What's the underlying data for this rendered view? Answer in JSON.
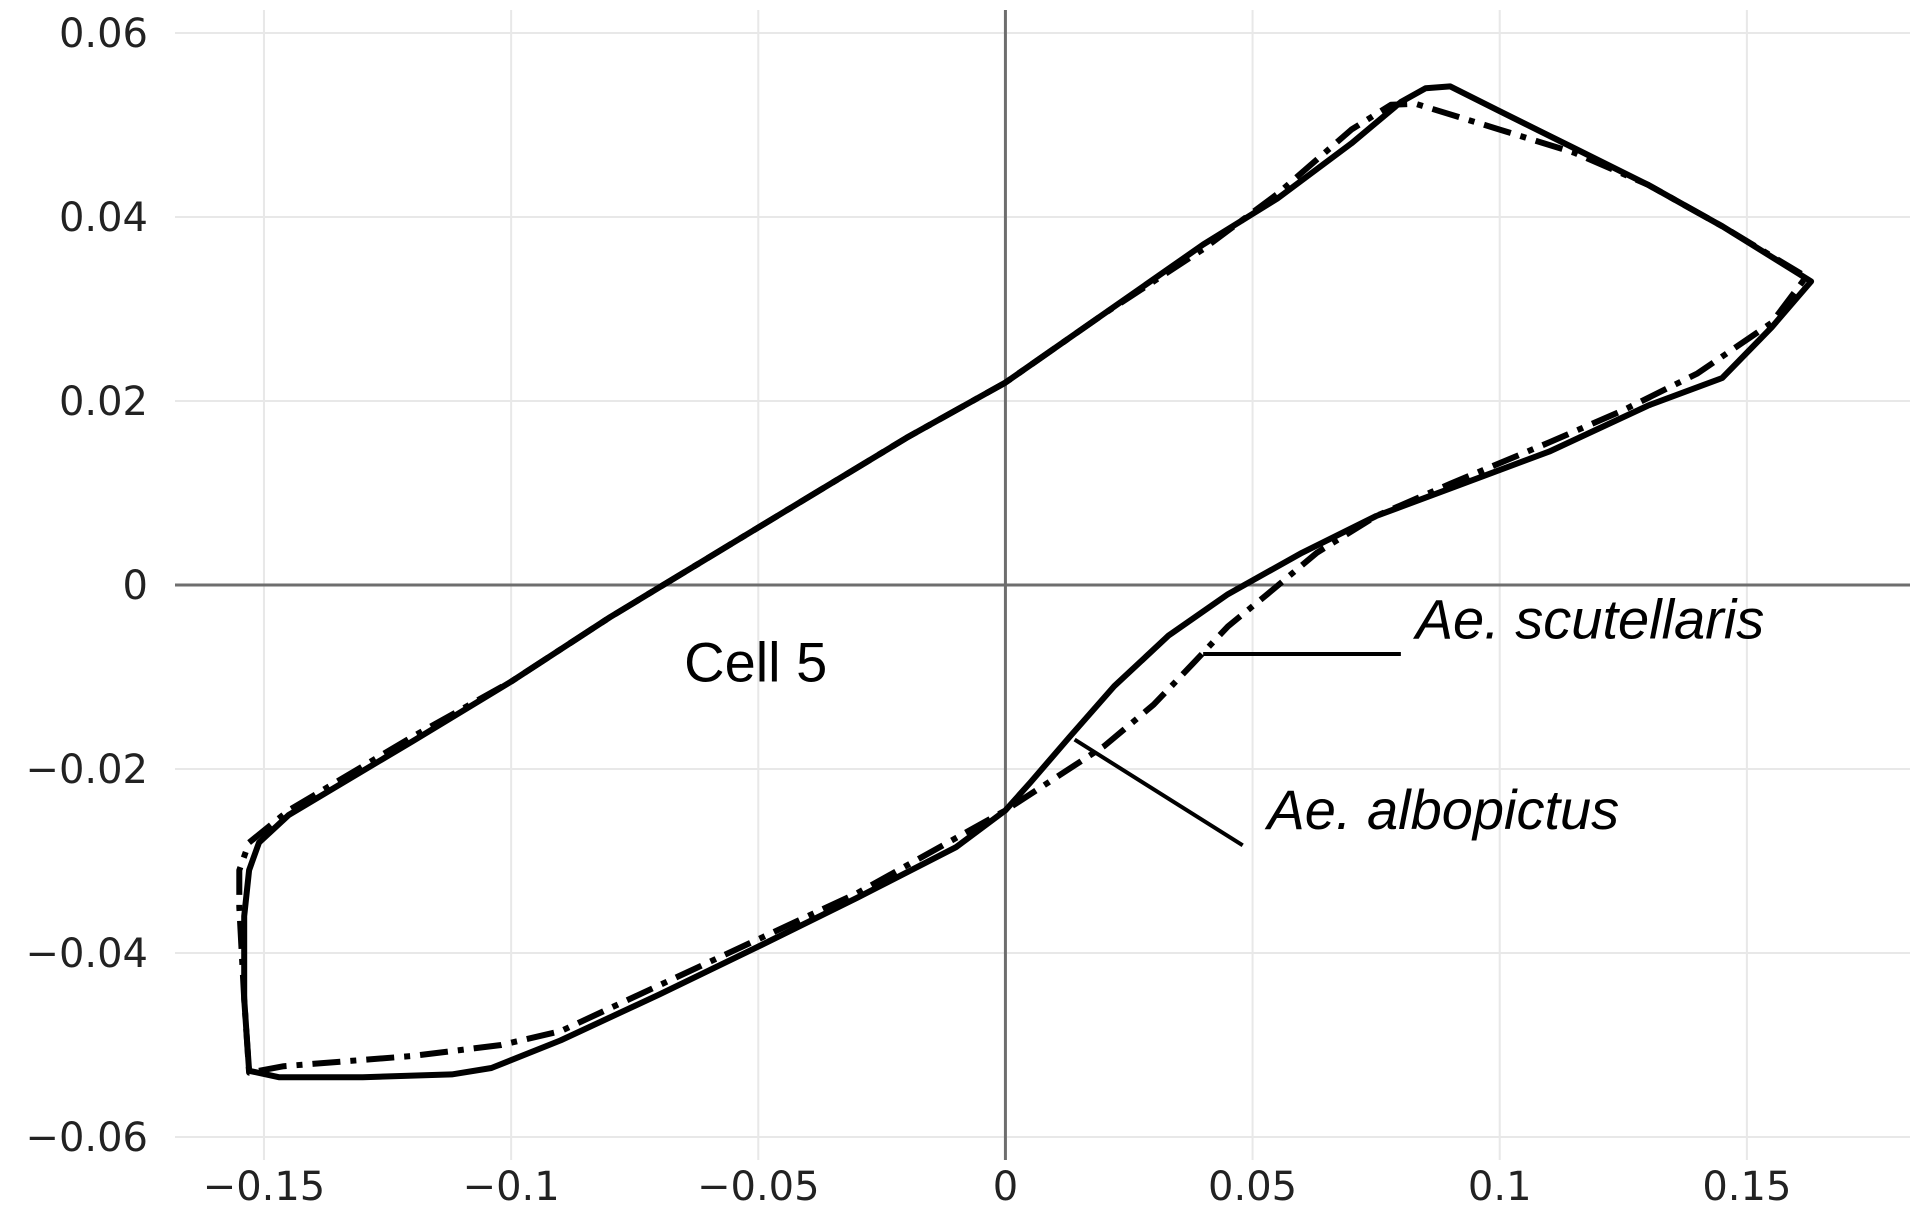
{
  "chart_data": {
    "type": "line",
    "title": "",
    "xlabel": "",
    "ylabel": "",
    "xlim": [
      -0.168,
      0.183
    ],
    "ylim": [
      -0.0625,
      0.0625
    ],
    "grid": true,
    "x_ticks": [
      {
        "value": -0.15,
        "label": "−0.15"
      },
      {
        "value": -0.1,
        "label": "−0.1"
      },
      {
        "value": -0.05,
        "label": "−0.05"
      },
      {
        "value": 0,
        "label": "0"
      },
      {
        "value": 0.05,
        "label": "0.05"
      },
      {
        "value": 0.1,
        "label": "0.1"
      },
      {
        "value": 0.15,
        "label": "0.15"
      }
    ],
    "y_ticks": [
      {
        "value": 0.06,
        "label": "0.06"
      },
      {
        "value": 0.04,
        "label": "0.04"
      },
      {
        "value": 0.02,
        "label": "0.02"
      },
      {
        "value": 0,
        "label": "0"
      },
      {
        "value": -0.02,
        "label": "−0.02"
      },
      {
        "value": -0.04,
        "label": "−0.04"
      },
      {
        "value": -0.06,
        "label": "−0.06"
      }
    ],
    "annotations": [
      {
        "text": "Cell 5",
        "x": -0.065,
        "y": -0.0105,
        "italic": false
      },
      {
        "text": "Ae. scutellaris",
        "x": 0.083,
        "y": -0.0058,
        "italic": true,
        "leader": [
          [
            0.04,
            -0.0075
          ],
          [
            0.08,
            -0.0075
          ]
        ]
      },
      {
        "text": "Ae. albopictus",
        "x": 0.053,
        "y": -0.0265,
        "italic": true,
        "leader": [
          [
            0.014,
            -0.0168
          ],
          [
            0.048,
            -0.0283
          ]
        ]
      }
    ],
    "series": [
      {
        "style": "solid",
        "points": [
          [
            -0.151,
            -0.028
          ],
          [
            -0.145,
            -0.025
          ],
          [
            -0.12,
            -0.017
          ],
          [
            -0.1,
            -0.0105
          ],
          [
            -0.08,
            -0.0035
          ],
          [
            -0.06,
            0.003
          ],
          [
            -0.04,
            0.0095
          ],
          [
            -0.02,
            0.016
          ],
          [
            0,
            0.022
          ],
          [
            0.02,
            0.0295
          ],
          [
            0.04,
            0.037
          ],
          [
            0.055,
            0.042
          ],
          [
            0.07,
            0.048
          ],
          [
            0.08,
            0.0525
          ],
          [
            0.085,
            0.054
          ],
          [
            0.09,
            0.0542
          ],
          [
            0.1,
            0.0515
          ],
          [
            0.115,
            0.0475
          ],
          [
            0.13,
            0.0435
          ],
          [
            0.145,
            0.039
          ],
          [
            0.16,
            0.034
          ],
          [
            0.163,
            0.033
          ],
          [
            0.155,
            0.028
          ],
          [
            0.145,
            0.0225
          ],
          [
            0.13,
            0.0195
          ],
          [
            0.11,
            0.0145
          ],
          [
            0.09,
            0.0105
          ],
          [
            0.075,
            0.0075
          ],
          [
            0.06,
            0.0035
          ],
          [
            0.045,
            -0.001
          ],
          [
            0.033,
            -0.0055
          ],
          [
            0.022,
            -0.011
          ],
          [
            0.013,
            -0.0165
          ],
          [
            0.005,
            -0.0215
          ],
          [
            0,
            -0.0245
          ],
          [
            -0.01,
            -0.0285
          ],
          [
            -0.03,
            -0.034
          ],
          [
            -0.05,
            -0.0393
          ],
          [
            -0.07,
            -0.0445
          ],
          [
            -0.09,
            -0.0495
          ],
          [
            -0.104,
            -0.0525
          ],
          [
            -0.112,
            -0.0532
          ],
          [
            -0.13,
            -0.0535
          ],
          [
            -0.147,
            -0.0535
          ],
          [
            -0.153,
            -0.0528
          ],
          [
            -0.154,
            -0.045
          ],
          [
            -0.154,
            -0.036
          ],
          [
            -0.153,
            -0.031
          ],
          [
            -0.151,
            -0.028
          ]
        ]
      },
      {
        "style": "dash-dot",
        "points": [
          [
            -0.153,
            -0.028
          ],
          [
            -0.145,
            -0.0245
          ],
          [
            -0.12,
            -0.0165
          ],
          [
            -0.1,
            -0.0105
          ],
          [
            -0.08,
            -0.0035
          ],
          [
            -0.06,
            0.003
          ],
          [
            -0.04,
            0.0095
          ],
          [
            -0.02,
            0.016
          ],
          [
            0,
            0.022
          ],
          [
            0.02,
            0.0295
          ],
          [
            0.04,
            0.0365
          ],
          [
            0.055,
            0.0425
          ],
          [
            0.07,
            0.0495
          ],
          [
            0.078,
            0.0522
          ],
          [
            0.083,
            0.0523
          ],
          [
            0.1,
            0.0495
          ],
          [
            0.115,
            0.047
          ],
          [
            0.13,
            0.0435
          ],
          [
            0.145,
            0.039
          ],
          [
            0.162,
            0.0335
          ],
          [
            0.155,
            0.0285
          ],
          [
            0.14,
            0.023
          ],
          [
            0.125,
            0.019
          ],
          [
            0.11,
            0.0155
          ],
          [
            0.09,
            0.011
          ],
          [
            0.075,
            0.0075
          ],
          [
            0.063,
            0.0035
          ],
          [
            0.053,
            -0.001
          ],
          [
            0.045,
            -0.0045
          ],
          [
            0.038,
            -0.0085
          ],
          [
            0.03,
            -0.013
          ],
          [
            0.02,
            -0.0175
          ],
          [
            0.01,
            -0.021
          ],
          [
            0,
            -0.0245
          ],
          [
            -0.01,
            -0.0275
          ],
          [
            -0.03,
            -0.0335
          ],
          [
            -0.05,
            -0.0385
          ],
          [
            -0.07,
            -0.0435
          ],
          [
            -0.09,
            -0.0485
          ],
          [
            -0.102,
            -0.05
          ],
          [
            -0.12,
            -0.0512
          ],
          [
            -0.146,
            -0.0523
          ],
          [
            -0.153,
            -0.053
          ],
          [
            -0.154,
            -0.045
          ],
          [
            -0.155,
            -0.035
          ],
          [
            -0.155,
            -0.031
          ],
          [
            -0.153,
            -0.028
          ]
        ]
      }
    ]
  }
}
